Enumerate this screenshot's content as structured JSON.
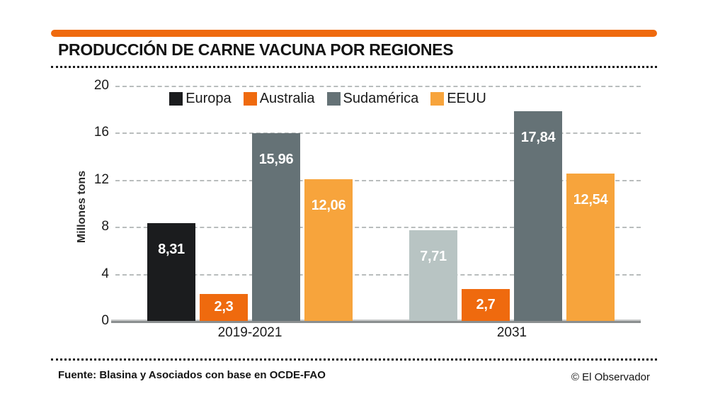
{
  "header": {
    "title": "PRODUCCIÓN DE CARNE VACUNA POR REGIONES"
  },
  "colors": {
    "accent_orange": "#ef6a0e",
    "europa_black": "#1b1c1e",
    "europa_projection_gray": "#b8c4c3",
    "australia_orange": "#ef6a0e",
    "sudamerica_slate": "#657276",
    "eeuu_amber": "#f7a43c",
    "gridline_gray": "#b9bdbd",
    "baseline_gray": "#8a8e8f",
    "value_label_white": "#ffffff"
  },
  "chart_data": {
    "type": "bar",
    "title": "PRODUCCIÓN DE CARNE VACUNA POR REGIONES",
    "xlabel": "",
    "ylabel": "Millones tons",
    "ylim": [
      0,
      20
    ],
    "yticks": [
      0,
      4,
      8,
      12,
      16,
      20
    ],
    "grid": "horizontal dashed",
    "legend_position": "top center",
    "categories": [
      "2019-2021",
      "2031"
    ],
    "series": [
      {
        "name": "Europa",
        "color": "#1b1c1e",
        "bar_colors": [
          "#1b1c1e",
          "#b8c4c3"
        ],
        "values": [
          8.31,
          7.71
        ],
        "value_labels": [
          "8,31",
          "7,71"
        ]
      },
      {
        "name": "Australia",
        "color": "#ef6a0e",
        "bar_colors": [
          "#ef6a0e",
          "#ef6a0e"
        ],
        "values": [
          2.3,
          2.7
        ],
        "value_labels": [
          "2,3",
          "2,7"
        ]
      },
      {
        "name": "Sudamérica",
        "color": "#657276",
        "bar_colors": [
          "#657276",
          "#657276"
        ],
        "values": [
          15.96,
          17.84
        ],
        "value_labels": [
          "15,96",
          "17,84"
        ]
      },
      {
        "name": "EEUU",
        "color": "#f7a43c",
        "bar_colors": [
          "#f7a43c",
          "#f7a43c"
        ],
        "values": [
          12.06,
          12.54
        ],
        "value_labels": [
          "12,06",
          "12,54"
        ]
      }
    ]
  },
  "footer": {
    "source": "Fuente: Blasina y Asociados con base en OCDE-FAO",
    "credit": "© El Observador"
  }
}
